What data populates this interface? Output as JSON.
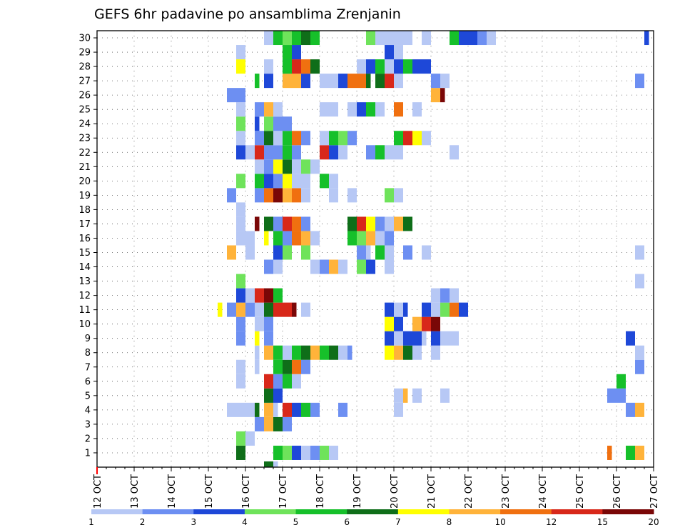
{
  "chart_data": {
    "type": "heatmap",
    "title": "GEFS 6hr padavine po ansamblima Zrenjanin",
    "x_tick_labels": [
      "12 OCT",
      "13 OCT",
      "14 OCT",
      "15 OCT",
      "16 OCT",
      "17 OCT",
      "18 OCT",
      "19 OCT",
      "20 OCT",
      "21 OCT",
      "22 OCT",
      "23 OCT",
      "24 OCT",
      "25 OCT",
      "26 OCT",
      "27 OCT"
    ],
    "y_tick_labels": [
      "1",
      "2",
      "3",
      "4",
      "5",
      "6",
      "7",
      "8",
      "9",
      "10",
      "11",
      "12",
      "13",
      "14",
      "15",
      "16",
      "17",
      "18",
      "19",
      "20",
      "21",
      "22",
      "23",
      "24",
      "25",
      "26",
      "27",
      "28",
      "29",
      "30"
    ],
    "steps_per_day": 4,
    "grid": "dotted",
    "legend": {
      "position": "bottom",
      "colors": [
        "#b7c8f5",
        "#6d8ff2",
        "#1e48d8",
        "#6fe35b",
        "#16c02a",
        "#0f6e19",
        "#ffff00",
        "#ffb33a",
        "#f07010",
        "#d8281a",
        "#7a0707"
      ],
      "labels": [
        "1",
        "2",
        "3",
        "4",
        "5",
        "6",
        "7",
        "8",
        "10",
        "12",
        "15",
        "20"
      ]
    },
    "cells": [
      [
        1,
        15,
        1,
        6
      ],
      [
        1,
        19,
        2,
        5
      ],
      [
        1,
        20,
        2,
        4
      ],
      [
        1,
        21,
        1,
        3
      ],
      [
        1,
        22,
        1,
        1
      ],
      [
        1,
        23,
        2,
        2
      ],
      [
        1,
        24,
        1,
        4
      ],
      [
        1,
        25,
        1,
        1
      ],
      [
        1,
        55,
        0,
        9
      ],
      [
        1,
        57,
        2,
        5
      ],
      [
        1,
        58,
        2,
        8
      ],
      [
        2,
        15,
        1,
        4
      ],
      [
        2,
        16,
        1,
        1
      ],
      [
        3,
        17,
        1,
        2
      ],
      [
        3,
        18,
        1,
        8
      ],
      [
        3,
        19,
        2,
        6
      ],
      [
        3,
        20,
        2,
        2
      ],
      [
        4,
        14,
        2,
        1
      ],
      [
        4,
        15,
        2,
        1
      ],
      [
        4,
        16,
        2,
        1
      ],
      [
        4,
        17,
        0,
        6
      ],
      [
        4,
        18,
        2,
        8
      ],
      [
        4,
        19,
        0,
        1
      ],
      [
        4,
        20,
        1,
        10
      ],
      [
        4,
        21,
        2,
        3
      ],
      [
        4,
        22,
        2,
        5
      ],
      [
        4,
        23,
        1,
        2
      ],
      [
        4,
        26,
        2,
        2
      ],
      [
        4,
        32,
        2,
        1
      ],
      [
        4,
        57,
        2,
        2
      ],
      [
        4,
        58,
        1,
        8
      ],
      [
        5,
        18,
        1,
        6
      ],
      [
        5,
        19,
        1,
        3
      ],
      [
        5,
        32,
        2,
        1
      ],
      [
        5,
        33,
        0,
        8
      ],
      [
        5,
        34,
        1,
        1
      ],
      [
        5,
        37,
        1,
        1
      ],
      [
        5,
        55,
        2,
        2
      ],
      [
        5,
        56,
        1,
        2
      ],
      [
        6,
        15,
        1,
        1
      ],
      [
        6,
        18,
        1,
        10
      ],
      [
        6,
        19,
        2,
        2
      ],
      [
        6,
        20,
        1,
        5
      ],
      [
        6,
        21,
        1,
        1
      ],
      [
        6,
        56,
        1,
        5
      ],
      [
        7,
        15,
        1,
        1
      ],
      [
        7,
        17,
        0,
        1
      ],
      [
        7,
        19,
        2,
        5
      ],
      [
        7,
        20,
        2,
        6
      ],
      [
        7,
        21,
        1,
        9
      ],
      [
        7,
        22,
        1,
        2
      ],
      [
        7,
        58,
        1,
        2
      ],
      [
        8,
        17,
        0,
        1
      ],
      [
        8,
        18,
        2,
        8
      ],
      [
        8,
        19,
        2,
        5
      ],
      [
        8,
        20,
        1,
        1
      ],
      [
        8,
        21,
        2,
        5
      ],
      [
        8,
        22,
        1,
        6
      ],
      [
        8,
        23,
        2,
        8
      ],
      [
        8,
        24,
        1,
        5
      ],
      [
        8,
        25,
        1,
        6
      ],
      [
        8,
        26,
        2,
        1
      ],
      [
        8,
        27,
        0,
        2
      ],
      [
        8,
        31,
        2,
        7
      ],
      [
        8,
        32,
        1,
        8
      ],
      [
        8,
        33,
        2,
        6
      ],
      [
        8,
        34,
        1,
        1
      ],
      [
        8,
        36,
        1,
        1
      ],
      [
        8,
        58,
        1,
        1
      ],
      [
        9,
        15,
        1,
        2
      ],
      [
        9,
        17,
        0,
        7
      ],
      [
        9,
        18,
        2,
        2
      ],
      [
        9,
        31,
        2,
        3
      ],
      [
        9,
        32,
        1,
        1
      ],
      [
        9,
        33,
        2,
        3
      ],
      [
        9,
        34,
        2,
        3
      ],
      [
        9,
        35,
        0,
        1
      ],
      [
        9,
        36,
        1,
        3
      ],
      [
        9,
        37,
        1,
        1
      ],
      [
        9,
        38,
        2,
        1
      ],
      [
        9,
        57,
        1,
        3
      ],
      [
        10,
        15,
        1,
        2
      ],
      [
        10,
        17,
        1,
        1
      ],
      [
        10,
        18,
        2,
        2
      ],
      [
        10,
        31,
        2,
        7
      ],
      [
        10,
        32,
        1,
        3
      ],
      [
        10,
        34,
        1,
        8
      ],
      [
        10,
        35,
        1,
        10
      ],
      [
        10,
        36,
        1,
        11
      ],
      [
        11,
        13,
        0,
        7
      ],
      [
        11,
        14,
        1,
        2
      ],
      [
        11,
        15,
        2,
        8
      ],
      [
        11,
        16,
        1,
        2
      ],
      [
        11,
        17,
        2,
        1
      ],
      [
        11,
        18,
        1,
        6
      ],
      [
        11,
        19,
        2,
        10
      ],
      [
        11,
        20,
        1,
        10
      ],
      [
        11,
        21,
        0,
        11
      ],
      [
        11,
        22,
        2,
        1
      ],
      [
        11,
        31,
        2,
        3
      ],
      [
        11,
        32,
        1,
        1
      ],
      [
        11,
        33,
        0,
        3
      ],
      [
        11,
        35,
        1,
        3
      ],
      [
        11,
        36,
        1,
        1
      ],
      [
        11,
        37,
        1,
        4
      ],
      [
        11,
        38,
        2,
        9
      ],
      [
        11,
        39,
        1,
        3
      ],
      [
        12,
        15,
        2,
        3
      ],
      [
        12,
        16,
        1,
        1
      ],
      [
        12,
        17,
        1,
        10
      ],
      [
        12,
        18,
        1,
        11
      ],
      [
        12,
        19,
        2,
        5
      ],
      [
        12,
        36,
        1,
        1
      ],
      [
        12,
        37,
        2,
        2
      ],
      [
        12,
        38,
        1,
        1
      ],
      [
        13,
        15,
        1,
        4
      ],
      [
        13,
        58,
        1,
        1
      ],
      [
        14,
        18,
        2,
        2
      ],
      [
        14,
        19,
        2,
        1
      ],
      [
        14,
        23,
        2,
        1
      ],
      [
        14,
        24,
        1,
        2
      ],
      [
        14,
        25,
        2,
        8
      ],
      [
        14,
        26,
        2,
        1
      ],
      [
        14,
        28,
        1,
        4
      ],
      [
        14,
        29,
        2,
        3
      ],
      [
        14,
        31,
        2,
        1
      ],
      [
        15,
        14,
        1,
        8
      ],
      [
        15,
        16,
        2,
        1
      ],
      [
        15,
        19,
        2,
        3
      ],
      [
        15,
        20,
        2,
        4
      ],
      [
        15,
        22,
        2,
        4
      ],
      [
        15,
        28,
        1,
        2
      ],
      [
        15,
        29,
        0,
        1
      ],
      [
        15,
        30,
        1,
        5
      ],
      [
        15,
        31,
        1,
        1
      ],
      [
        15,
        33,
        1,
        2
      ],
      [
        15,
        35,
        1,
        1
      ],
      [
        15,
        58,
        2,
        1
      ],
      [
        16,
        15,
        1,
        1
      ],
      [
        16,
        16,
        1,
        1
      ],
      [
        16,
        18,
        0,
        7
      ],
      [
        16,
        19,
        1,
        5
      ],
      [
        16,
        20,
        2,
        2
      ],
      [
        16,
        21,
        1,
        9
      ],
      [
        16,
        22,
        1,
        8
      ],
      [
        16,
        23,
        1,
        1
      ],
      [
        16,
        27,
        2,
        5
      ],
      [
        16,
        28,
        2,
        4
      ],
      [
        16,
        29,
        1,
        8
      ],
      [
        16,
        30,
        2,
        1
      ],
      [
        16,
        31,
        1,
        2
      ],
      [
        17,
        15,
        1,
        1
      ],
      [
        17,
        17,
        0,
        11
      ],
      [
        17,
        18,
        1,
        6
      ],
      [
        17,
        19,
        1,
        2
      ],
      [
        17,
        20,
        1,
        10
      ],
      [
        17,
        21,
        1,
        9
      ],
      [
        17,
        22,
        1,
        2
      ],
      [
        17,
        27,
        1,
        6
      ],
      [
        17,
        28,
        1,
        10
      ],
      [
        17,
        29,
        1,
        7
      ],
      [
        17,
        30,
        1,
        2
      ],
      [
        17,
        31,
        1,
        1
      ],
      [
        17,
        32,
        2,
        8
      ],
      [
        17,
        33,
        1,
        6
      ],
      [
        18,
        15,
        1,
        1
      ],
      [
        19,
        14,
        1,
        2
      ],
      [
        19,
        17,
        2,
        2
      ],
      [
        19,
        18,
        1,
        9
      ],
      [
        19,
        19,
        1,
        11
      ],
      [
        19,
        20,
        1,
        8
      ],
      [
        19,
        21,
        1,
        9
      ],
      [
        19,
        22,
        1,
        1
      ],
      [
        19,
        25,
        2,
        1
      ],
      [
        19,
        27,
        1,
        1
      ],
      [
        19,
        31,
        1,
        4
      ],
      [
        19,
        32,
        1,
        1
      ],
      [
        20,
        15,
        1,
        4
      ],
      [
        20,
        17,
        1,
        5
      ],
      [
        20,
        18,
        1,
        3
      ],
      [
        20,
        19,
        1,
        2
      ],
      [
        20,
        20,
        1,
        7
      ],
      [
        20,
        21,
        2,
        1
      ],
      [
        20,
        22,
        1,
        1
      ],
      [
        20,
        24,
        2,
        5
      ],
      [
        20,
        25,
        1,
        1
      ],
      [
        21,
        17,
        1,
        1
      ],
      [
        21,
        18,
        2,
        2
      ],
      [
        21,
        19,
        1,
        7
      ],
      [
        21,
        20,
        1,
        6
      ],
      [
        21,
        21,
        2,
        1
      ],
      [
        21,
        22,
        2,
        4
      ],
      [
        21,
        23,
        1,
        1
      ],
      [
        22,
        15,
        1,
        3
      ],
      [
        22,
        16,
        1,
        1
      ],
      [
        22,
        17,
        2,
        10
      ],
      [
        22,
        18,
        2,
        2
      ],
      [
        22,
        19,
        1,
        2
      ],
      [
        22,
        20,
        1,
        5
      ],
      [
        22,
        21,
        1,
        2
      ],
      [
        22,
        24,
        1,
        10
      ],
      [
        22,
        25,
        1,
        3
      ],
      [
        22,
        26,
        1,
        1
      ],
      [
        22,
        29,
        2,
        2
      ],
      [
        22,
        30,
        2,
        5
      ],
      [
        22,
        31,
        2,
        1
      ],
      [
        22,
        32,
        2,
        1
      ],
      [
        22,
        38,
        1,
        1
      ],
      [
        23,
        15,
        1,
        1
      ],
      [
        23,
        17,
        2,
        2
      ],
      [
        23,
        18,
        2,
        6
      ],
      [
        23,
        19,
        1,
        1
      ],
      [
        23,
        20,
        1,
        5
      ],
      [
        23,
        21,
        1,
        9
      ],
      [
        23,
        22,
        1,
        2
      ],
      [
        23,
        24,
        2,
        1
      ],
      [
        23,
        25,
        1,
        5
      ],
      [
        23,
        26,
        1,
        4
      ],
      [
        23,
        27,
        1,
        2
      ],
      [
        23,
        32,
        1,
        5
      ],
      [
        23,
        33,
        1,
        10
      ],
      [
        23,
        34,
        1,
        7
      ],
      [
        23,
        35,
        1,
        1
      ],
      [
        24,
        15,
        1,
        4
      ],
      [
        24,
        17,
        0,
        3
      ],
      [
        24,
        18,
        1,
        4
      ],
      [
        24,
        19,
        1,
        2
      ],
      [
        24,
        20,
        1,
        2
      ],
      [
        25,
        15,
        1,
        1
      ],
      [
        25,
        17,
        2,
        2
      ],
      [
        25,
        18,
        1,
        8
      ],
      [
        25,
        19,
        1,
        1
      ],
      [
        25,
        24,
        2,
        1
      ],
      [
        25,
        25,
        2,
        1
      ],
      [
        25,
        27,
        2,
        1
      ],
      [
        25,
        28,
        1,
        3
      ],
      [
        25,
        29,
        1,
        5
      ],
      [
        25,
        30,
        1,
        1
      ],
      [
        25,
        32,
        1,
        9
      ],
      [
        25,
        34,
        1,
        1
      ],
      [
        26,
        14,
        1,
        2
      ],
      [
        26,
        15,
        1,
        2
      ],
      [
        26,
        36,
        1,
        8
      ],
      [
        26,
        37,
        0,
        11
      ],
      [
        27,
        17,
        0,
        5
      ],
      [
        27,
        18,
        2,
        3
      ],
      [
        27,
        20,
        1,
        8
      ],
      [
        27,
        21,
        1,
        8
      ],
      [
        27,
        22,
        1,
        3
      ],
      [
        27,
        24,
        2,
        1
      ],
      [
        27,
        25,
        2,
        1
      ],
      [
        27,
        26,
        1,
        3
      ],
      [
        27,
        27,
        2,
        9
      ],
      [
        27,
        28,
        1,
        9
      ],
      [
        27,
        29,
        0,
        6
      ],
      [
        27,
        30,
        1,
        6
      ],
      [
        27,
        31,
        1,
        10
      ],
      [
        27,
        32,
        2,
        1
      ],
      [
        27,
        36,
        2,
        2
      ],
      [
        27,
        37,
        1,
        1
      ],
      [
        27,
        58,
        2,
        2
      ],
      [
        28,
        15,
        1,
        7
      ],
      [
        28,
        18,
        2,
        1
      ],
      [
        28,
        20,
        1,
        3
      ],
      [
        28,
        20,
        2,
        5
      ],
      [
        28,
        21,
        1,
        10
      ],
      [
        28,
        22,
        1,
        9
      ],
      [
        28,
        23,
        1,
        6
      ],
      [
        28,
        28,
        2,
        1
      ],
      [
        28,
        29,
        1,
        3
      ],
      [
        28,
        30,
        2,
        5
      ],
      [
        28,
        31,
        1,
        1
      ],
      [
        28,
        32,
        1,
        3
      ],
      [
        28,
        33,
        1,
        5
      ],
      [
        28,
        34,
        1,
        3
      ],
      [
        28,
        35,
        1,
        3
      ],
      [
        29,
        15,
        1,
        1
      ],
      [
        29,
        20,
        2,
        5
      ],
      [
        29,
        21,
        1,
        3
      ],
      [
        29,
        31,
        2,
        3
      ],
      [
        29,
        32,
        1,
        1
      ],
      [
        30,
        18,
        2,
        1
      ],
      [
        30,
        19,
        1,
        5
      ],
      [
        30,
        20,
        1,
        4
      ],
      [
        30,
        21,
        2,
        5
      ],
      [
        30,
        22,
        1,
        6
      ],
      [
        30,
        23,
        1,
        5
      ],
      [
        30,
        29,
        2,
        4
      ],
      [
        30,
        30,
        1,
        1
      ],
      [
        30,
        31,
        1,
        1
      ],
      [
        30,
        32,
        1,
        1
      ],
      [
        30,
        33,
        1,
        1
      ],
      [
        30,
        35,
        1,
        1
      ],
      [
        30,
        38,
        1,
        5
      ],
      [
        30,
        39,
        1,
        3
      ],
      [
        30,
        40,
        1,
        3
      ],
      [
        30,
        41,
        1,
        2
      ],
      [
        30,
        42,
        1,
        1
      ],
      [
        30,
        59,
        0,
        3
      ],
      [
        0,
        18,
        1,
        6
      ],
      [
        0,
        19,
        0,
        1
      ]
    ],
    "bottom_axis_marker": {
      "day_index": 0,
      "color": "#ff0000"
    }
  }
}
